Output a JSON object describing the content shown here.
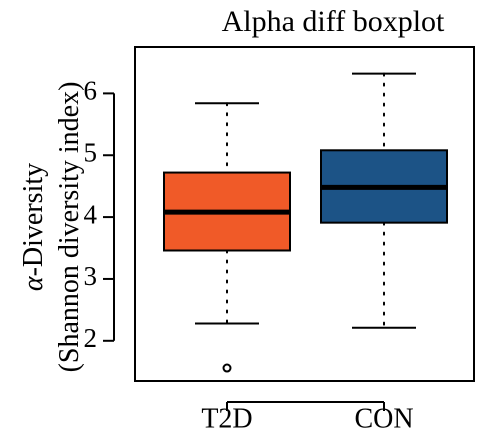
{
  "chart_data": {
    "type": "boxplot",
    "title": "Alpha diff boxplot",
    "ylabel_main": "-Diversity",
    "ylabel_greek": "α",
    "ylabel_sub": "(Shannon diversity index)",
    "ylim": [
      1.35,
      6.75
    ],
    "yticks": [
      2,
      3,
      4,
      5,
      6
    ],
    "categories": [
      "T2D",
      "CON"
    ],
    "series": [
      {
        "category": "T2D",
        "color": "#F05A28",
        "whisker_low": 2.28,
        "q1": 3.46,
        "median": 4.08,
        "q3": 4.72,
        "whisker_high": 5.84,
        "outliers": [
          1.56
        ]
      },
      {
        "category": "CON",
        "color": "#1C5386",
        "whisker_low": 2.21,
        "q1": 3.91,
        "median": 4.48,
        "q3": 5.08,
        "whisker_high": 6.32,
        "outliers": []
      }
    ],
    "grid": false,
    "frame_color": "#000000"
  }
}
